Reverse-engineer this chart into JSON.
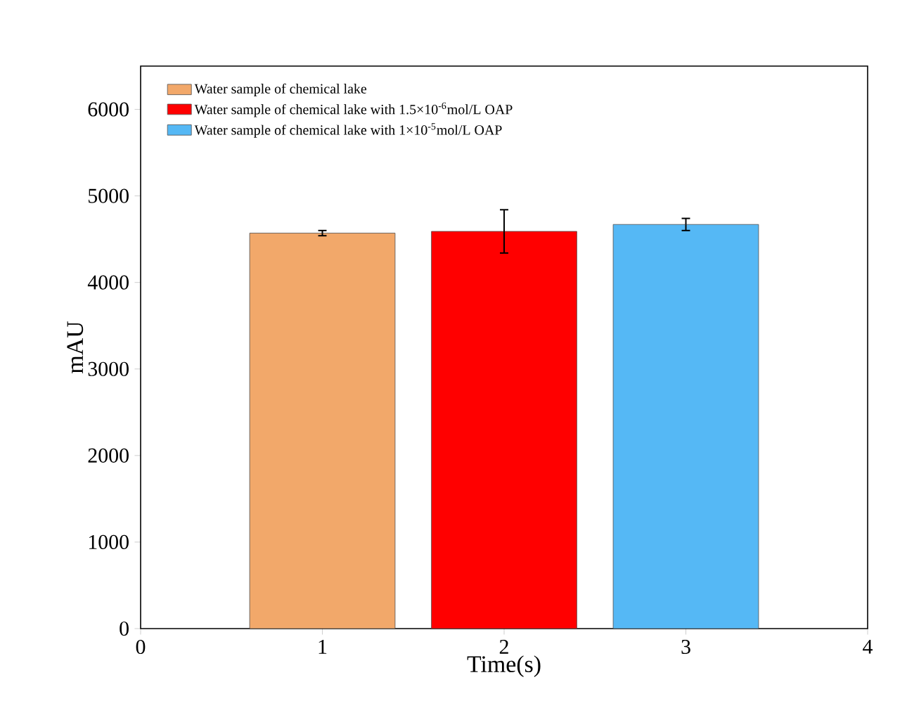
{
  "chart_data": {
    "type": "bar",
    "xlabel": "Time(s)",
    "ylabel": "mAU",
    "xlim": [
      0,
      4
    ],
    "xticks": [
      0,
      1,
      2,
      3,
      4
    ],
    "ylim": [
      0,
      6500
    ],
    "yticks": [
      0,
      1000,
      2000,
      3000,
      4000,
      5000,
      6000
    ],
    "legend": "top left",
    "series": [
      {
        "name": "Water sample of chemical lake",
        "color": "#f2a86a",
        "x": [
          1
        ],
        "values": [
          4570
        ],
        "errors": [
          30
        ]
      },
      {
        "name": "Water sample of chemical lake with 1.5×10$^{-6}$mol/L OAP",
        "color": "#ff0000",
        "x": [
          2
        ],
        "values": [
          4590
        ],
        "errors": [
          250
        ]
      },
      {
        "name": "Water sample of chemical lake with 1×10$^{-5}$mol/L OAP",
        "color": "#55b8f5",
        "x": [
          3
        ],
        "values": [
          4670
        ],
        "errors": [
          70
        ]
      }
    ]
  }
}
